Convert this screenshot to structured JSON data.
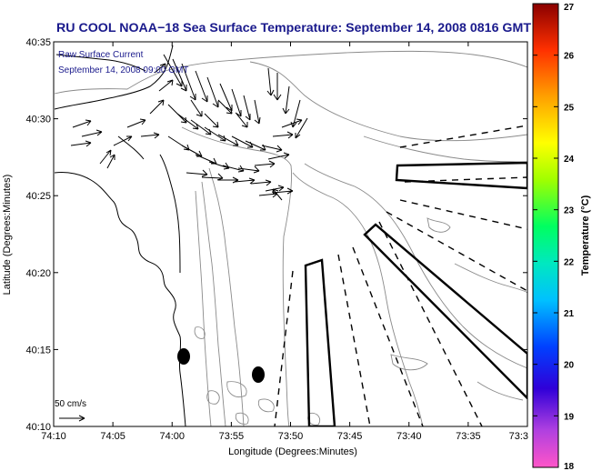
{
  "title": "RU COOL  NOAA−18  Sea Surface Temperature:  September 14, 2008 0816 GMT",
  "legend": {
    "line1": "Raw Surface Current",
    "line2": "September 14, 2008 09:00 GMT"
  },
  "scale_label": "50 cm/s",
  "xlabel": "Longitude (Degrees:Minutes)",
  "ylabel": "Latitude (Degrees:Minutes)",
  "x_ticks": [
    "74:10",
    "74:05",
    "74:00",
    "73:55",
    "73:50",
    "73:45",
    "73:40",
    "73:35",
    "73:3"
  ],
  "y_ticks": [
    "40:35",
    "40:30",
    "40:25",
    "40:20",
    "40:15",
    "40:10"
  ],
  "colorbar": {
    "label": "Temperature (°C)",
    "ticks": [
      "27",
      "26",
      "25",
      "24",
      "23",
      "22",
      "21",
      "20",
      "19",
      "18"
    ],
    "min": 18,
    "max": 27
  },
  "colors": {
    "title": "#1a1a8c",
    "legend": "#1a1a8c",
    "contour": "#8a8a8a",
    "coast": "#000000"
  }
}
